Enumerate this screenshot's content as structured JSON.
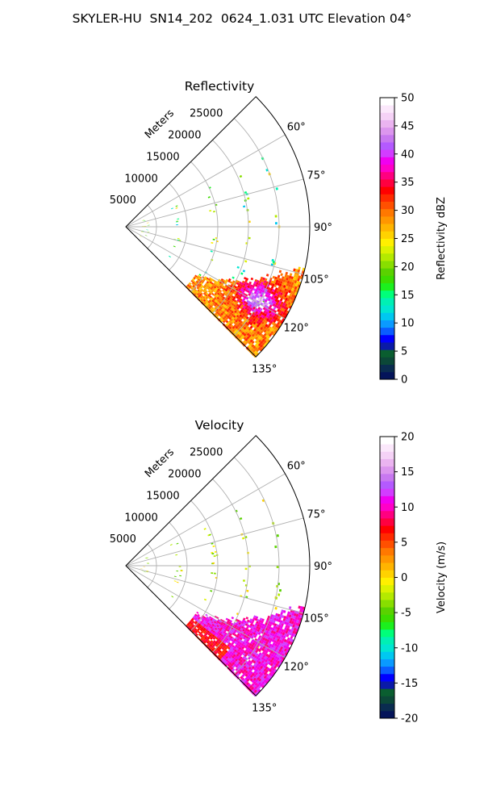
{
  "figure": {
    "title": "SKYLER-HU  SN14_202  0624_1.031 UTC Elevation 04°"
  },
  "chart_data": [
    {
      "type": "polar-sector",
      "title": "Reflectivity",
      "radial_label": "Meters",
      "r_ticks": [
        "5000",
        "10000",
        "15000",
        "20000",
        "25000"
      ],
      "r_range": [
        0,
        30000
      ],
      "theta_ticks": [
        "60°",
        "75°",
        "90°",
        "105°",
        "120°",
        "135°"
      ],
      "theta_range": [
        45,
        135
      ],
      "grid": true,
      "colorbar": {
        "label": "Reflectivity dBZ",
        "ticks": [
          "0",
          "5",
          "10",
          "15",
          "20",
          "25",
          "30",
          "35",
          "40",
          "45",
          "50"
        ],
        "range": [
          0,
          50
        ],
        "colors": [
          "#04145a",
          "#0a2c50",
          "#0c4838",
          "#0a5e30",
          "#0a1aa8",
          "#0000ff",
          "#0a5cff",
          "#0a9aff",
          "#00c8f0",
          "#00e6d2",
          "#00f0b4",
          "#00ff7a",
          "#1cf01e",
          "#3cdc00",
          "#5ad200",
          "#88de00",
          "#b4ea00",
          "#dcf200",
          "#fff000",
          "#ffd200",
          "#ffb400",
          "#ff9600",
          "#ff7800",
          "#ff5000",
          "#ff2a00",
          "#ff0000",
          "#ff0040",
          "#ff0080",
          "#ff00c8",
          "#f000f0",
          "#d23cff",
          "#b45aff",
          "#c878f0",
          "#dc96ee",
          "#ebb4f0",
          "#f5d2f6",
          "#fbe8fb",
          "#ffffff"
        ]
      }
    },
    {
      "type": "polar-sector",
      "title": "Velocity",
      "radial_label": "Meters",
      "r_ticks": [
        "5000",
        "10000",
        "15000",
        "20000",
        "25000"
      ],
      "r_range": [
        0,
        30000
      ],
      "theta_ticks": [
        "60°",
        "75°",
        "90°",
        "105°",
        "120°",
        "135°"
      ],
      "theta_range": [
        45,
        135
      ],
      "grid": true,
      "colorbar": {
        "label": "Velocity (m/s)",
        "ticks": [
          "-20",
          "-15",
          "-10",
          "-5",
          "0",
          "5",
          "10",
          "15",
          "20"
        ],
        "range": [
          -20,
          20
        ],
        "colors": [
          "#04145a",
          "#0a2c50",
          "#0c4838",
          "#0a5e30",
          "#0a1aa8",
          "#0000ff",
          "#0a5cff",
          "#0a9aff",
          "#00c8f0",
          "#00e6d2",
          "#00f0b4",
          "#00ff7a",
          "#1cf01e",
          "#3cdc00",
          "#5ad200",
          "#88de00",
          "#b4ea00",
          "#dcf200",
          "#fff000",
          "#ffd200",
          "#ffb400",
          "#ff9600",
          "#ff7800",
          "#ff5000",
          "#ff2a00",
          "#ff0000",
          "#ff0040",
          "#ff0080",
          "#ff00c8",
          "#f000f0",
          "#d23cff",
          "#b45aff",
          "#c878f0",
          "#dc96ee",
          "#ebb4f0",
          "#f5d2f6",
          "#fbe8fb",
          "#ffffff"
        ]
      }
    }
  ]
}
